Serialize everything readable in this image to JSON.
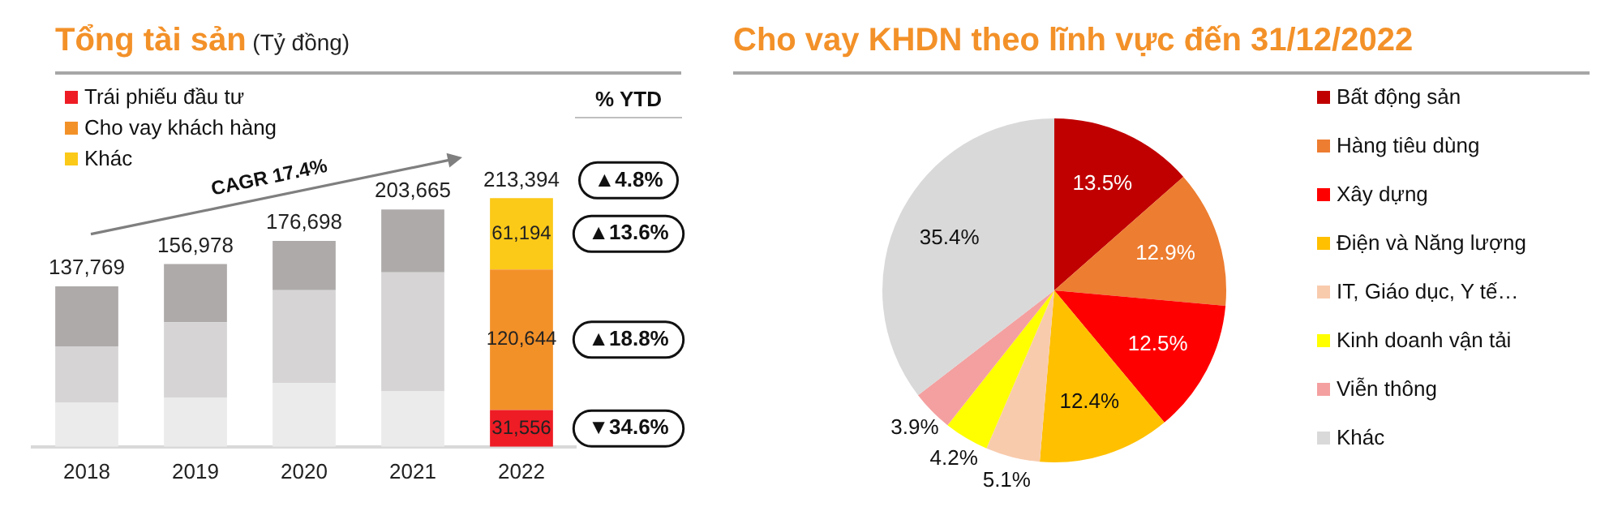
{
  "chart_data": [
    {
      "type": "bar",
      "title": "Tổng tài sản",
      "subtitle": "(Tỷ đồng)",
      "stacked": true,
      "legend": "top left",
      "categories": [
        "2018",
        "2019",
        "2020",
        "2021",
        "2022"
      ],
      "series": [
        {
          "name": "Trái phiếu đầu tư",
          "color": "#ee1c25",
          "colors": [
            "#ebebeb",
            "#ebebeb",
            "#ebebeb",
            "#ebebeb",
            "#ee1c25"
          ],
          "values": [
            37800,
            42400,
            54800,
            47500,
            31556
          ],
          "value_labels": [
            null,
            null,
            null,
            null,
            "31,556"
          ]
        },
        {
          "name": "Cho vay khách hàng",
          "color": "#f39129",
          "colors": [
            "#d6d4d4",
            "#d6d4d4",
            "#d6d4d4",
            "#d6d4d4",
            "#f39129"
          ],
          "values": [
            48400,
            64500,
            79700,
            102300,
            120644
          ],
          "value_labels": [
            null,
            null,
            null,
            null,
            "120,644"
          ]
        },
        {
          "name": "Khác",
          "color": "#fbc918",
          "colors": [
            "#aeaaaa",
            "#aeaaaa",
            "#aeaaaa",
            "#aeaaaa",
            "#fbc918"
          ],
          "values": [
            51569,
            50078,
            42198,
            53865,
            61194
          ],
          "value_labels": [
            null,
            null,
            null,
            null,
            "61,194"
          ]
        }
      ],
      "totals": [
        "137,769",
        "156,978",
        "176,698",
        "203,665",
        "213,394"
      ],
      "annotations": [
        "CAGR 17.4%",
        "% YTD",
        "▲4.8%",
        "▲13.6%",
        "▲18.8%",
        "▼34.6%"
      ]
    },
    {
      "type": "pie",
      "title": "Cho vay KHDN theo lĩnh vực đến 31/12/2022",
      "legend": "right",
      "value_labels": [
        "13.5%",
        "12.9%",
        "12.5%",
        "12.4%",
        "5.1%",
        "4.2%",
        "3.9%",
        "35.4%"
      ],
      "categories": [
        "Bất động sản",
        "Hàng tiêu dùng",
        "Xây dựng",
        "Điện và Năng lượng",
        "IT, Giáo dục, Y tế…",
        "Kinh doanh vận tải",
        "Viễn thông",
        "Khác"
      ],
      "values": [
        13.5,
        12.9,
        12.5,
        12.4,
        5.1,
        4.2,
        3.9,
        35.4
      ],
      "colors": [
        "#c00000",
        "#ed7d31",
        "#ff0000",
        "#ffc000",
        "#f8cbad",
        "#ffff00",
        "#f4a0a0",
        "#d9d9d9"
      ]
    }
  ]
}
